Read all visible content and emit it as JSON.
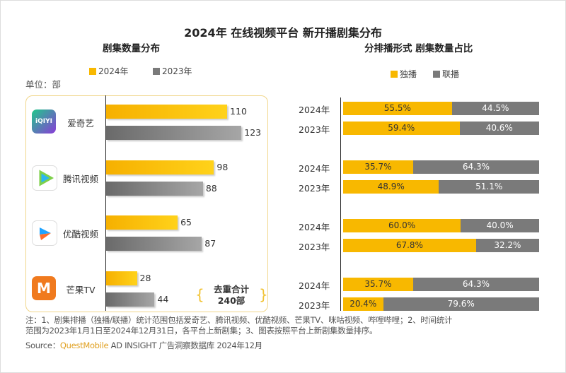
{
  "title": "2024年 在线视频平台 新开播剧集分布",
  "colors": {
    "y2024": "#f8b800",
    "y2023": "#7a7a7a",
    "exclusive": "#f8b800",
    "joint": "#7a7a7a"
  },
  "chart_data": [
    {
      "type": "bar",
      "orientation": "horizontal",
      "title": "剧集数量分布",
      "unit_label": "单位：部",
      "categories": [
        "爱奇艺",
        "腾讯视频",
        "优酷视频",
        "芒果TV"
      ],
      "icons": [
        "iqiyi-logo",
        "tencent-video-logo",
        "youku-logo",
        "mango-tv-logo"
      ],
      "series": [
        {
          "name": "2024年",
          "values": [
            110,
            98,
            65,
            28
          ]
        },
        {
          "name": "2023年",
          "values": [
            123,
            88,
            87,
            44
          ]
        }
      ],
      "legend": "top",
      "annotation": {
        "line1": "去重合计",
        "line2": "240部"
      }
    },
    {
      "type": "bar",
      "stacked": true,
      "orientation": "horizontal",
      "title": "分排播形式 剧集数量占比",
      "groups": [
        [
          "2024年",
          "2023年"
        ],
        [
          "2024年",
          "2023年"
        ],
        [
          "2024年",
          "2023年"
        ],
        [
          "2024年",
          "2023年"
        ]
      ],
      "series": [
        {
          "name": "独播",
          "values": [
            [
              55.5,
              59.4
            ],
            [
              35.7,
              48.9
            ],
            [
              60.0,
              67.8
            ],
            [
              35.7,
              20.4
            ]
          ]
        },
        {
          "name": "联播",
          "values": [
            [
              44.5,
              40.6
            ],
            [
              64.3,
              51.1
            ],
            [
              40.0,
              32.2
            ],
            [
              64.3,
              79.6
            ]
          ]
        }
      ],
      "legend": "top"
    }
  ],
  "note": {
    "line1": "注：1、剧集排播（独播/联播）统计范围包括爱奇艺、腾讯视频、优酷视频、芒果TV、咪咕视频、哔哩哔哩；2、时间统计",
    "line2": "范围为2023年1月1日至2024年12月31日，各平台上新剧集；3、图表按照平台上新剧集数量排序。"
  },
  "source": {
    "label": "Source：",
    "brand": "QuestMobile",
    "rest": " AD INSIGHT 广告洞察数据库 2024年12月"
  }
}
